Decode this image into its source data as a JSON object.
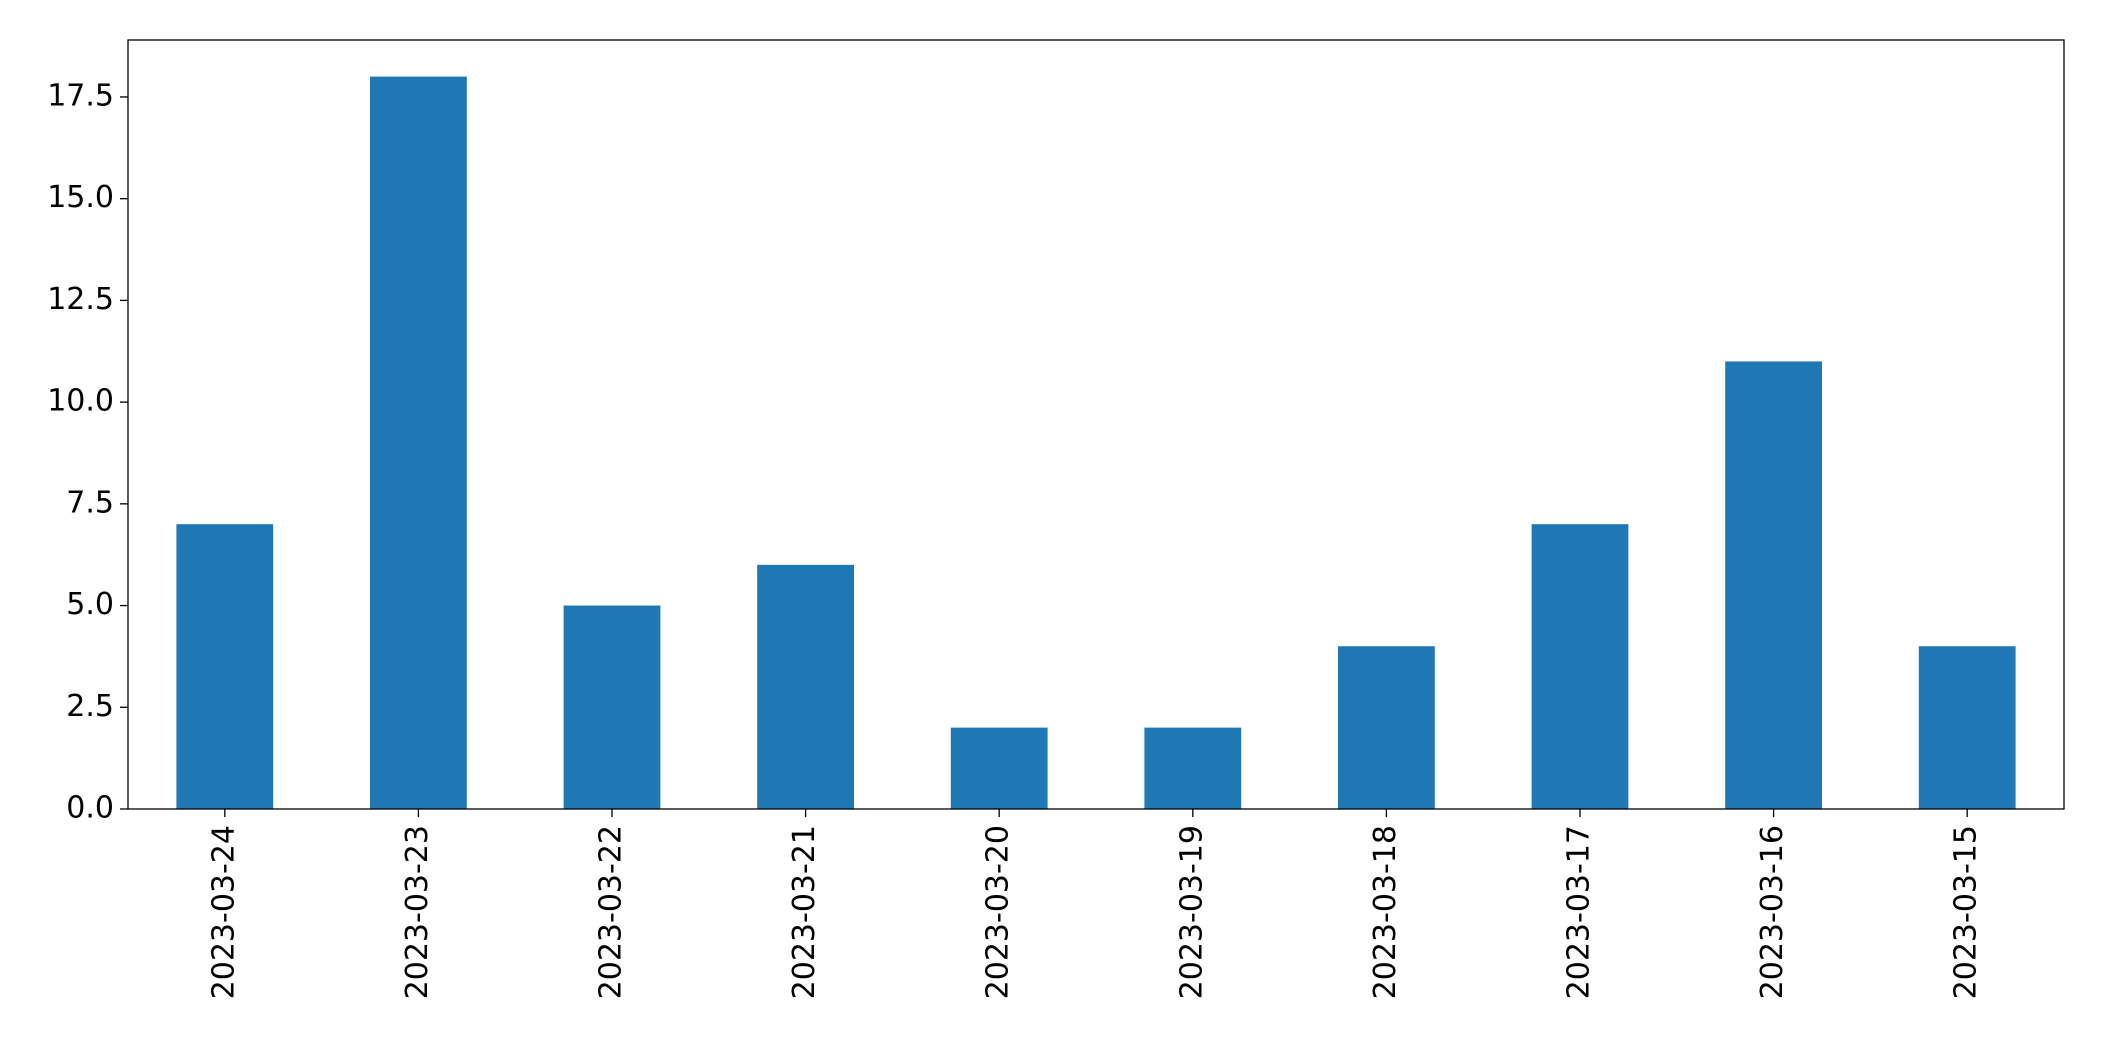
{
  "chart_data": {
    "type": "bar",
    "categories": [
      "2023-03-24",
      "2023-03-23",
      "2023-03-22",
      "2023-03-21",
      "2023-03-20",
      "2023-03-19",
      "2023-03-18",
      "2023-03-17",
      "2023-03-16",
      "2023-03-15"
    ],
    "values": [
      7,
      18,
      5,
      6,
      2,
      2,
      4,
      7,
      11,
      4
    ],
    "color": "#1f77b4",
    "ylim": [
      0,
      18.9
    ],
    "yticks": [
      {
        "value": 0,
        "label": "0.0"
      },
      2.5,
      {
        "value": 5,
        "label": "5.0"
      },
      7.5,
      {
        "value": 10,
        "label": "10.0"
      },
      12.5,
      {
        "value": 15,
        "label": "15.0"
      },
      17.5
    ],
    "grid": false
  }
}
